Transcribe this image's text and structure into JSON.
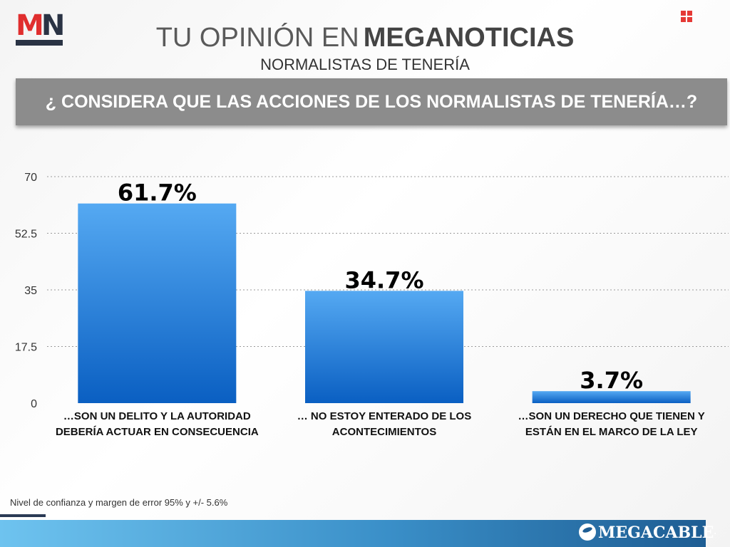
{
  "brand": {
    "logo_text": "MN",
    "footer_brand": "MEGACABLE",
    "footer_brand_suffix": "."
  },
  "header": {
    "title_light": "TU OPINIÓN EN",
    "title_bold": "MEGANOTICIAS",
    "subtitle": "NORMALISTAS DE TENERÍA",
    "question": "¿ CONSIDERA QUE LAS ACCIONES DE LOS NORMALISTAS DE TENERÍA…?"
  },
  "chart_data": {
    "type": "bar",
    "categories": [
      "…SON UN DELITO Y LA AUTORIDAD DEBERÍA ACTUAR EN CONSECUENCIA",
      "… NO ESTOY ENTERADO DE LOS ACONTECIMIENTOS",
      "…SON UN DERECHO QUE TIENEN Y ESTÁN EN EL MARCO DE LA LEY"
    ],
    "category_lines": [
      [
        "…SON UN DELITO Y LA AUTORIDAD",
        "DEBERÍA ACTUAR EN CONSECUENCIA"
      ],
      [
        "… NO ESTOY ENTERADO DE LOS",
        "ACONTECIMIENTOS"
      ],
      [
        "…SON UN DERECHO QUE TIENEN Y",
        "ESTÁN EN EL MARCO DE LA LEY"
      ]
    ],
    "values": [
      61.7,
      34.7,
      3.7
    ],
    "data_labels": [
      "61.7%",
      "34.7%",
      "3.7%"
    ],
    "yticks": [
      "0",
      "17.5",
      "35",
      "52.5",
      "70"
    ],
    "ytick_values": [
      0,
      17.5,
      35,
      52.5,
      70
    ],
    "ylim": [
      0,
      70
    ],
    "grid": true,
    "bar_color_top": "#55a9f2",
    "bar_color_bottom": "#0a5fc2"
  },
  "footer": {
    "note": "Nivel de confianza y margen de error 95% y +/- 5.6%"
  },
  "colors": {
    "banner": "#8c8c8c",
    "logo_red": "#e02e2e",
    "logo_navy": "#2a3344"
  }
}
